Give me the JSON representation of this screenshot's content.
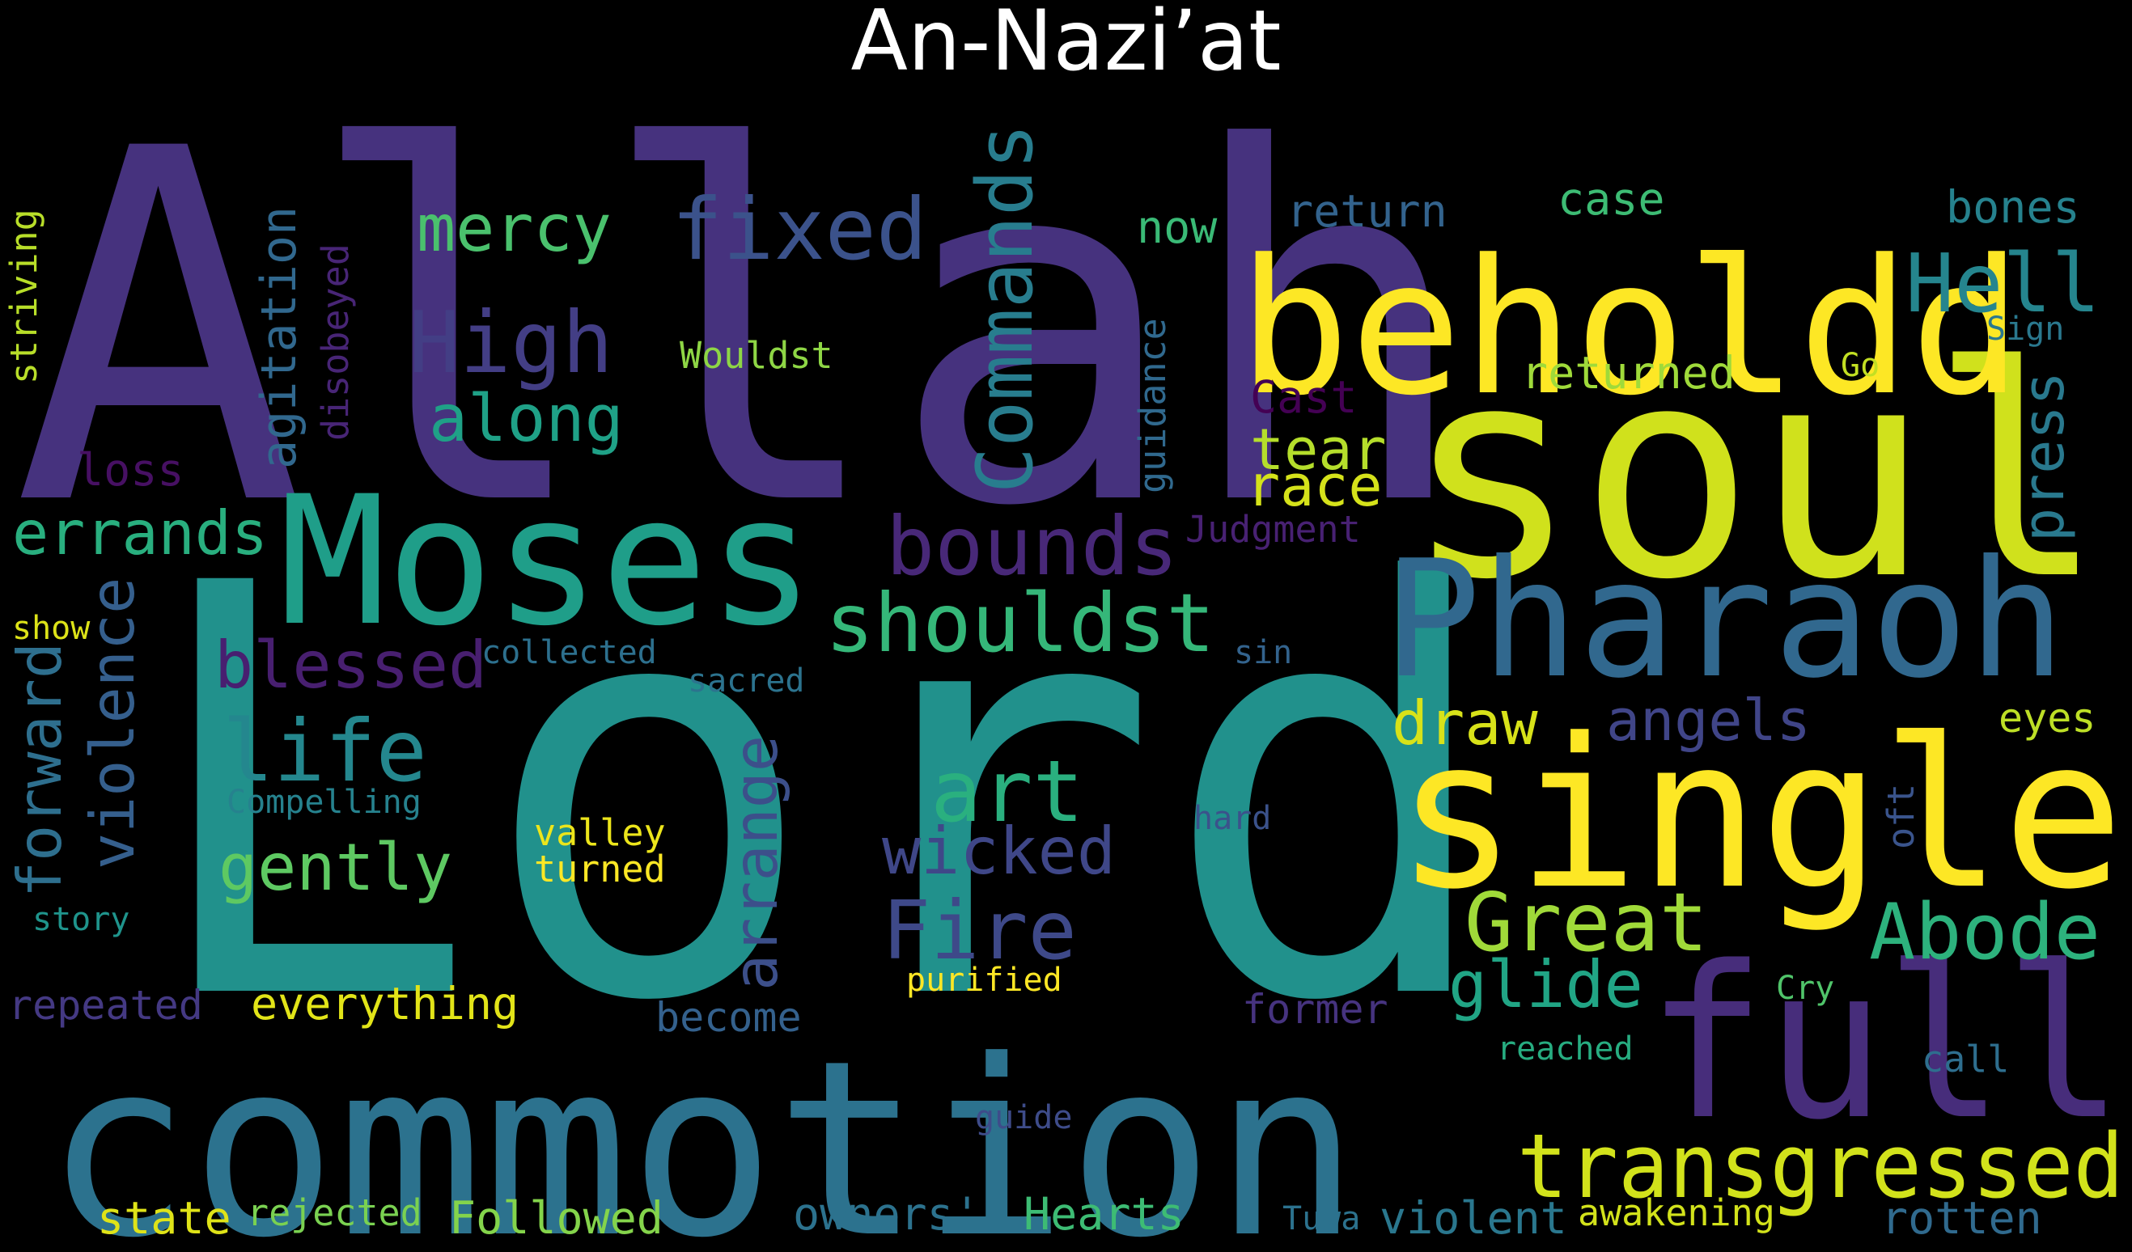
{
  "title": "An-Nazi’at",
  "colors": {
    "background": "#000000",
    "title": "#ffffff"
  },
  "words": [
    {
      "text": "Lord",
      "color": "#21918c"
    },
    {
      "text": "Allah",
      "color": "#46327e"
    },
    {
      "text": "soul",
      "color": "#d0e11c"
    },
    {
      "text": "commotion",
      "color": "#2c728e"
    },
    {
      "text": "beholdd",
      "color": "#fde725"
    },
    {
      "text": "single",
      "color": "#fde725"
    },
    {
      "text": "Pharaoh",
      "color": "#31688e"
    },
    {
      "text": "Moses",
      "color": "#1f9e89"
    },
    {
      "text": "full",
      "color": "#472d7b"
    },
    {
      "text": "transgressed",
      "color": "#d2e21b"
    },
    {
      "text": "fixed",
      "color": "#3b528b"
    },
    {
      "text": "High",
      "color": "#433e85"
    },
    {
      "text": "bounds",
      "color": "#482878"
    },
    {
      "text": "shouldst",
      "color": "#35b779"
    },
    {
      "text": "Hell",
      "color": "#25858e"
    },
    {
      "text": "Great",
      "color": "#a0da39"
    },
    {
      "text": "Abode",
      "color": "#2db27d"
    },
    {
      "text": "Commands",
      "color": "#287d8e"
    },
    {
      "text": "life",
      "color": "#24878e"
    },
    {
      "text": "art",
      "color": "#2ab07f"
    },
    {
      "text": "Fire",
      "color": "#3e4989"
    },
    {
      "text": "wicked",
      "color": "#3f4788"
    },
    {
      "text": "mercy",
      "color": "#4ac16d"
    },
    {
      "text": "along",
      "color": "#1fa187"
    },
    {
      "text": "errands",
      "color": "#29af7f"
    },
    {
      "text": "blessed",
      "color": "#481f70"
    },
    {
      "text": "gently",
      "color": "#5ec962"
    },
    {
      "text": "violence",
      "color": "#355f8d"
    },
    {
      "text": "forward",
      "color": "#2e6f8e"
    },
    {
      "text": "arrange",
      "color": "#3c4f8a"
    },
    {
      "text": "agitation",
      "color": "#31688e"
    },
    {
      "text": "angels",
      "color": "#404588"
    },
    {
      "text": "draw",
      "color": "#d8e219"
    },
    {
      "text": "tear",
      "color": "#b5de2b"
    },
    {
      "text": "race",
      "color": "#d5e21a"
    },
    {
      "text": "glide",
      "color": "#21a585"
    },
    {
      "text": "press",
      "color": "#29798e"
    },
    {
      "text": "return",
      "color": "#33638d"
    },
    {
      "text": "returned",
      "color": "#9fda3a"
    },
    {
      "text": "case",
      "color": "#3dbc74"
    },
    {
      "text": "bones",
      "color": "#26828e"
    },
    {
      "text": "now",
      "color": "#3aba76"
    },
    {
      "text": "Cast",
      "color": "#440154"
    },
    {
      "text": "Sign",
      "color": "#2a788e"
    },
    {
      "text": "Go",
      "color": "#c2df23"
    },
    {
      "text": "Wouldst",
      "color": "#8ed645"
    },
    {
      "text": "guidance",
      "color": "#30698e"
    },
    {
      "text": "Judgment",
      "color": "#482173"
    },
    {
      "text": "disobeyed",
      "color": "#482576"
    },
    {
      "text": "striving",
      "color": "#b8de29"
    },
    {
      "text": "loss",
      "color": "#471063"
    },
    {
      "text": "show",
      "color": "#dde318"
    },
    {
      "text": "collected",
      "color": "#2d708e"
    },
    {
      "text": "sin",
      "color": "#33638d"
    },
    {
      "text": "sacred",
      "color": "#2c738e"
    },
    {
      "text": "eyes",
      "color": "#bddf26"
    },
    {
      "text": "oft",
      "color": "#3a548c"
    },
    {
      "text": "Compelling",
      "color": "#26828e"
    },
    {
      "text": "valley",
      "color": "#ecE51b"
    },
    {
      "text": "turned",
      "color": "#fde725"
    },
    {
      "text": "hard",
      "color": "#3b528b"
    },
    {
      "text": "story",
      "color": "#1f948c"
    },
    {
      "text": "purified",
      "color": "#fde725"
    },
    {
      "text": "repeated",
      "color": "#443983"
    },
    {
      "text": "everything",
      "color": "#e2e418"
    },
    {
      "text": "become",
      "color": "#34618d"
    },
    {
      "text": "former",
      "color": "#46337f"
    },
    {
      "text": "Cry",
      "color": "#50c46a"
    },
    {
      "text": "reached",
      "color": "#27ad81"
    },
    {
      "text": "call",
      "color": "#2e6e8e"
    },
    {
      "text": "guide",
      "color": "#3e4c8a"
    },
    {
      "text": "state",
      "color": "#dfe318"
    },
    {
      "text": "rejected",
      "color": "#7ad151"
    },
    {
      "text": "Followed",
      "color": "#84d44b"
    },
    {
      "text": "owners'",
      "color": "#2c728e"
    },
    {
      "text": "Hearts",
      "color": "#3dbc74"
    },
    {
      "text": "Tuwa",
      "color": "#2c728e"
    },
    {
      "text": "violent",
      "color": "#2a778e"
    },
    {
      "text": "awakening",
      "color": "#d2e21b"
    },
    {
      "text": "rotten",
      "color": "#306a8e"
    }
  ]
}
